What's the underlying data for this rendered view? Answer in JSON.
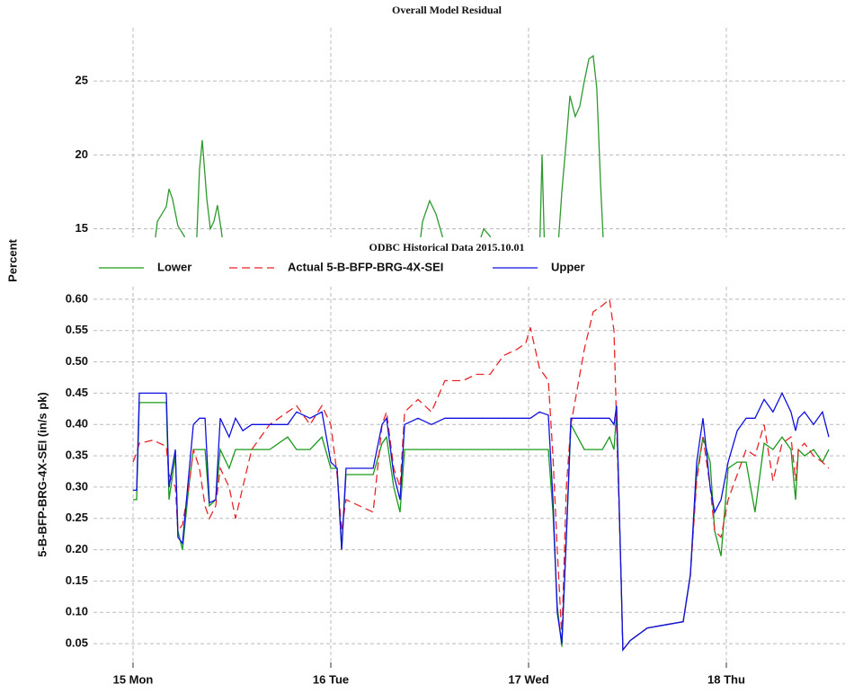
{
  "chart_data": [
    {
      "type": "line",
      "title": "Overall Model Residual",
      "y_label": "Percent",
      "x": [
        15.1,
        15.123,
        15.168,
        15.182,
        15.2,
        15.227,
        15.259,
        15.282,
        15.3,
        15.318,
        15.336,
        15.35,
        15.373,
        15.391,
        15.409,
        15.427,
        15.445,
        15.464,
        15.6,
        16.441,
        16.464,
        16.5,
        16.532,
        16.564,
        16.591,
        16.65,
        16.736,
        16.773,
        16.805,
        16.827,
        16.9,
        17.055,
        17.068,
        17.082,
        17.1,
        17.145,
        17.168,
        17.191,
        17.209,
        17.236,
        17.259,
        17.282,
        17.305,
        17.327,
        17.345,
        17.364,
        17.382
      ],
      "values": [
        13,
        15.5,
        16.5,
        17.7,
        17,
        15.2,
        14.5,
        13,
        null,
        13,
        19,
        21,
        17,
        15,
        15.5,
        16.6,
        15,
        13,
        null,
        13,
        15.5,
        16.9,
        16,
        14.5,
        13,
        null,
        13.5,
        15,
        14.5,
        13.5,
        null,
        13,
        20,
        13,
        null,
        13,
        17.5,
        21,
        24,
        22.6,
        23.3,
        25,
        26.5,
        26.7,
        24.5,
        18,
        13
      ],
      "color": "#2e9a2e",
      "xlim": [
        14.8,
        18.6
      ],
      "xticks": [
        15,
        16,
        17,
        18
      ],
      "ylim": [
        14,
        28.6
      ],
      "yticks": [
        15,
        20,
        25
      ],
      "grid": true
    },
    {
      "type": "line",
      "title": "ODBC Historical Data 2015.10.01",
      "y_label": "5-B-BFP-BRG-4X-SEI (in/s pk)",
      "legend": "top",
      "x": [
        15.0,
        15.018,
        15.032,
        15.1,
        15.168,
        15.182,
        15.214,
        15.227,
        15.25,
        15.282,
        15.305,
        15.336,
        15.364,
        15.386,
        15.418,
        15.441,
        15.486,
        15.518,
        15.555,
        15.6,
        15.691,
        15.782,
        15.827,
        15.895,
        15.955,
        16.0,
        16.032,
        16.055,
        16.077,
        16.145,
        16.214,
        16.259,
        16.282,
        16.318,
        16.35,
        16.373,
        16.441,
        16.509,
        16.577,
        16.668,
        16.736,
        16.805,
        16.873,
        16.941,
        16.986,
        17.009,
        17.055,
        17.1,
        17.123,
        17.145,
        17.168,
        17.191,
        17.214,
        17.282,
        17.327,
        17.373,
        17.409,
        17.432,
        17.445,
        17.468,
        17.477,
        17.514,
        17.6,
        17.691,
        17.782,
        17.818,
        17.85,
        17.882,
        17.918,
        17.941,
        17.973,
        18.009,
        18.055,
        18.1,
        18.145,
        18.191,
        18.236,
        18.282,
        18.327,
        18.35,
        18.364,
        18.395,
        18.441,
        18.486,
        18.518
      ],
      "series": [
        {
          "name": "Lower",
          "color": "#1a9a1a",
          "values": [
            0.28,
            0.28,
            0.435,
            0.435,
            0.435,
            0.28,
            0.35,
            0.23,
            0.2,
            0.3,
            0.36,
            0.36,
            0.36,
            0.27,
            0.28,
            0.36,
            0.33,
            0.36,
            0.36,
            0.36,
            0.36,
            0.38,
            0.36,
            0.36,
            0.38,
            0.33,
            0.33,
            0.2,
            0.32,
            0.32,
            0.32,
            0.37,
            0.38,
            0.3,
            0.26,
            0.36,
            0.36,
            0.36,
            0.36,
            0.36,
            0.36,
            0.36,
            0.36,
            0.36,
            0.36,
            0.36,
            0.36,
            0.36,
            0.26,
            0.11,
            0.045,
            0.22,
            0.4,
            0.36,
            0.36,
            0.36,
            0.38,
            0.36,
            0.42,
            0.15,
            0.04,
            0.055,
            0.075,
            0.08,
            0.085,
            0.16,
            0.32,
            0.38,
            0.34,
            0.23,
            0.19,
            0.33,
            0.34,
            0.34,
            0.26,
            0.37,
            0.36,
            0.38,
            0.36,
            0.28,
            0.36,
            0.35,
            0.36,
            0.34,
            0.36
          ]
        },
        {
          "name": "Actual 5-B-BFP-BRG-4X-SEI",
          "color": "#e8262a",
          "dashed": true,
          "values": [
            0.34,
            0.355,
            0.37,
            0.375,
            0.365,
            0.32,
            0.3,
            0.23,
            0.24,
            0.3,
            0.36,
            0.33,
            0.27,
            0.25,
            0.27,
            0.33,
            0.3,
            0.25,
            0.3,
            0.36,
            0.4,
            0.42,
            0.43,
            0.4,
            0.43,
            0.4,
            0.32,
            0.23,
            0.28,
            0.27,
            0.26,
            0.4,
            0.42,
            0.33,
            0.3,
            0.42,
            0.44,
            0.42,
            0.47,
            0.47,
            0.48,
            0.48,
            0.51,
            0.52,
            0.53,
            0.555,
            0.49,
            0.47,
            0.35,
            0.2,
            0.06,
            0.3,
            0.4,
            0.52,
            0.58,
            0.59,
            0.6,
            0.55,
            0.4,
            0.15,
            0.04,
            0.055,
            0.075,
            0.08,
            0.085,
            0.16,
            0.31,
            0.38,
            0.3,
            0.23,
            0.22,
            0.28,
            0.32,
            0.36,
            0.35,
            0.4,
            0.31,
            0.37,
            0.38,
            0.31,
            0.36,
            0.37,
            0.35,
            0.34,
            0.33
          ]
        },
        {
          "name": "Upper",
          "color": "#1010e0",
          "values": [
            0.295,
            0.295,
            0.45,
            0.45,
            0.45,
            0.3,
            0.36,
            0.22,
            0.21,
            0.32,
            0.4,
            0.41,
            0.41,
            0.275,
            0.28,
            0.41,
            0.38,
            0.41,
            0.39,
            0.4,
            0.4,
            0.4,
            0.42,
            0.41,
            0.42,
            0.34,
            0.33,
            0.2,
            0.33,
            0.33,
            0.33,
            0.4,
            0.41,
            0.32,
            0.28,
            0.4,
            0.41,
            0.4,
            0.41,
            0.41,
            0.41,
            0.41,
            0.41,
            0.41,
            0.41,
            0.41,
            0.42,
            0.415,
            0.28,
            0.1,
            0.05,
            0.22,
            0.41,
            0.41,
            0.41,
            0.41,
            0.41,
            0.4,
            0.43,
            0.15,
            0.04,
            0.055,
            0.075,
            0.08,
            0.085,
            0.16,
            0.34,
            0.41,
            0.3,
            0.26,
            0.28,
            0.34,
            0.39,
            0.41,
            0.41,
            0.44,
            0.42,
            0.45,
            0.42,
            0.39,
            0.41,
            0.42,
            0.4,
            0.42,
            0.38
          ]
        }
      ],
      "xlim": [
        14.8,
        18.6
      ],
      "xticks": [
        {
          "value": 15,
          "label": "15 Mon"
        },
        {
          "value": 16,
          "label": "16 Tue"
        },
        {
          "value": 17,
          "label": "17 Wed"
        },
        {
          "value": 18,
          "label": "18 Thu"
        }
      ],
      "ylim": [
        0.02,
        0.62
      ],
      "yticks": [
        0.05,
        {
          "value": 0.1,
          "label": "0.10"
        },
        0.15,
        {
          "value": 0.2,
          "label": "0.20"
        },
        0.25,
        {
          "value": 0.3,
          "label": "0.30"
        },
        0.35,
        {
          "value": 0.4,
          "label": "0.40"
        },
        0.45,
        {
          "value": 0.5,
          "label": "0.50"
        },
        0.55,
        {
          "value": 0.6,
          "label": "0.60"
        }
      ],
      "grid": true
    }
  ]
}
